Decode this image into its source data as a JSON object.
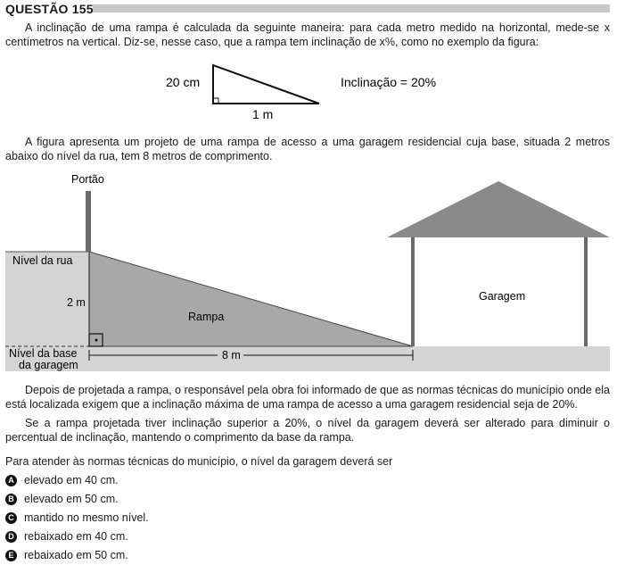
{
  "question": {
    "title": "QUESTÃO 155"
  },
  "paragraphs": {
    "p1": "A inclinação de uma rampa é calculada da seguinte maneira: para cada metro medido na horizontal, mede-se x centímetros na vertical. Diz-se, nesse caso, que a rampa tem inclinação de x%, como no exemplo da figura:",
    "p2": "A figura apresenta um projeto de uma rampa de acesso a uma garagem residencial cuja base, situada 2 metros abaixo do nível da rua, tem 8 metros de comprimento.",
    "p3": "Depois de projetada a rampa, o responsável pela obra foi informado de que as normas técnicas do município onde ela está localizada exigem que a inclinação máxima de uma rampa de acesso a uma garagem residencial seja de 20%.",
    "p4": "Se a rampa projetada tiver inclinação superior a 20%, o nível da garagem deverá ser alterado para diminuir o percentual de inclinação, mantendo o comprimento da base da rampa.",
    "p5": "Para atender às normas técnicas do município, o nível da garagem deverá ser"
  },
  "example_figure": {
    "vertical_label": "20 cm",
    "horizontal_label": "1 m",
    "slope_label": "Inclinação = 20%"
  },
  "ramp_figure": {
    "gate_label": "Portão",
    "street_level_label": "Nível da rua",
    "height_label": "2 m",
    "ramp_label": "Rampa",
    "garage_label": "Garagem",
    "base_level_label_1": "Nível da base",
    "base_level_label_2": "da garagem",
    "length_label": "8 m"
  },
  "options": [
    {
      "letter": "A",
      "text": "elevado em 40 cm."
    },
    {
      "letter": "B",
      "text": "elevado em 50 cm."
    },
    {
      "letter": "C",
      "text": "mantido no mesmo nível."
    },
    {
      "letter": "D",
      "text": "rebaixado em 40 cm."
    },
    {
      "letter": "E",
      "text": "rebaixado em 50 cm."
    }
  ]
}
